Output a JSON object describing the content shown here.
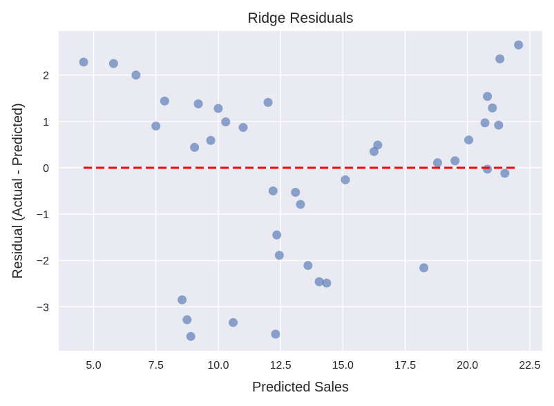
{
  "chart_data": {
    "type": "scatter",
    "title": "Ridge Residuals",
    "xlabel": "Predicted Sales",
    "ylabel": "Residual (Actual - Predicted)",
    "xlim": [
      3.6,
      23.0
    ],
    "ylim": [
      -3.95,
      2.95
    ],
    "xticks": [
      5.0,
      7.5,
      10.0,
      12.5,
      15.0,
      17.5,
      20.0,
      22.5
    ],
    "xtick_labels": [
      "5.0",
      "7.5",
      "10.0",
      "12.5",
      "15.0",
      "17.5",
      "20.0",
      "22.5"
    ],
    "yticks": [
      -3,
      -2,
      -1,
      0,
      1,
      2
    ],
    "ytick_labels": [
      "−3",
      "−2",
      "−1",
      "0",
      "1",
      "2"
    ],
    "grid": true,
    "colors": {
      "background": "#eaeaf2",
      "points": "#4c72b0",
      "reference_line": "#ff0000",
      "grid": "#ffffff"
    },
    "reference_line": {
      "y": 0,
      "x_start": 4.6,
      "x_end": 22.0,
      "style": "dashed"
    },
    "series": [
      {
        "points": [
          [
            4.6,
            2.28
          ],
          [
            5.8,
            2.25
          ],
          [
            6.7,
            2.0
          ],
          [
            7.5,
            0.9
          ],
          [
            7.85,
            1.44
          ],
          [
            8.55,
            -2.85
          ],
          [
            8.75,
            -3.28
          ],
          [
            8.9,
            -3.64
          ],
          [
            9.05,
            0.44
          ],
          [
            9.2,
            1.38
          ],
          [
            9.7,
            0.59
          ],
          [
            10.0,
            1.28
          ],
          [
            10.3,
            0.99
          ],
          [
            10.6,
            -3.34
          ],
          [
            11.0,
            0.87
          ],
          [
            12.0,
            1.41
          ],
          [
            12.2,
            -0.5
          ],
          [
            12.3,
            -3.59
          ],
          [
            12.35,
            -1.45
          ],
          [
            12.45,
            -1.89
          ],
          [
            13.1,
            -0.53
          ],
          [
            13.3,
            -0.79
          ],
          [
            13.6,
            -2.11
          ],
          [
            14.05,
            -2.46
          ],
          [
            14.35,
            -2.49
          ],
          [
            15.1,
            -0.26
          ],
          [
            16.25,
            0.35
          ],
          [
            16.4,
            0.49
          ],
          [
            18.25,
            -2.16
          ],
          [
            18.8,
            0.11
          ],
          [
            19.5,
            0.15
          ],
          [
            20.05,
            0.6
          ],
          [
            20.7,
            0.97
          ],
          [
            20.8,
            -0.03
          ],
          [
            20.8,
            1.54
          ],
          [
            21.0,
            1.29
          ],
          [
            21.25,
            0.92
          ],
          [
            21.3,
            2.35
          ],
          [
            21.5,
            -0.12
          ],
          [
            22.05,
            2.65
          ]
        ]
      }
    ]
  }
}
